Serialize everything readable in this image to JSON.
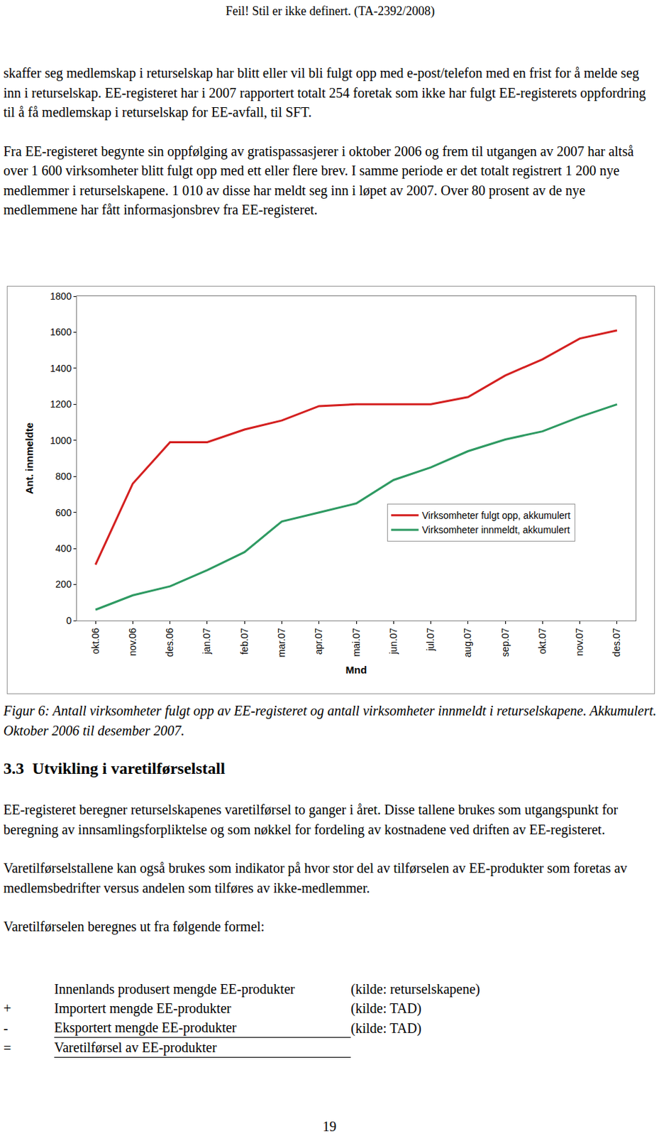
{
  "header": "Feil! Stil er ikke definert. (TA-2392/2008)",
  "paragraphs_before": [
    "skaffer seg medlemskap i returselskap har blitt eller vil bli fulgt opp med e-post/telefon med en frist for å melde seg inn i returselskap. EE-registeret har i 2007 rapportert totalt 254 foretak som ikke har fulgt EE-registerets oppfordring til å få medlemskap i returselskap for EE-avfall, til SFT.",
    "Fra EE-registeret begynte sin oppfølging av gratispassasjerer i oktober 2006 og frem til utgangen av 2007 har altså over 1 600 virksomheter blitt fulgt opp med ett eller flere brev. I samme periode er det totalt registrert 1 200 nye medlemmer i returselskapene. 1 010 av disse har meldt seg inn i løpet av 2007. Over 80 prosent av de nye medlemmene har fått informasjonsbrev fra EE-registeret."
  ],
  "chart_data": {
    "type": "line",
    "x_label": "Mnd",
    "y_label": "Ant. innmeldte",
    "categories": [
      "okt.06",
      "nov.06",
      "des.06",
      "jan.07",
      "feb.07",
      "mar.07",
      "apr.07",
      "mai.07",
      "jun.07",
      "jul.07",
      "aug.07",
      "sep.07",
      "okt.07",
      "nov.07",
      "des.07"
    ],
    "series": [
      {
        "name": "Virksomheter fulgt opp, akkumulert",
        "color": "#d42020",
        "values": [
          310,
          760,
          990,
          990,
          1060,
          1110,
          1190,
          1200,
          1200,
          1200,
          1240,
          1360,
          1450,
          1565,
          1610
        ]
      },
      {
        "name": "Virksomheter innmeldt, akkumulert",
        "color": "#2e9a62",
        "values": [
          60,
          140,
          190,
          280,
          380,
          550,
          600,
          650,
          780,
          850,
          940,
          1005,
          1050,
          1130,
          1200
        ]
      }
    ],
    "ylim": [
      0,
      1800
    ],
    "yticks": [
      0,
      200,
      400,
      600,
      800,
      1000,
      1200,
      1400,
      1600,
      1800
    ],
    "grid": false,
    "legend": "right"
  },
  "caption": "Figur 6: Antall virksomheter fulgt opp av EE-registeret og antall virksomheter innmeldt i returselskapene. Akkumulert. Oktober 2006 til desember 2007.",
  "section": {
    "number": "3.3",
    "title": "Utvikling i varetilførselstall"
  },
  "paragraphs_after": [
    "EE-registeret beregner returselskapenes varetilførsel to ganger i året. Disse tallene brukes som utgangspunkt for beregning av innsamlingsforpliktelse og som nøkkel for fordeling av kostnadene ved driften av EE-registeret.",
    "Varetilførselstallene kan også brukes som indikator på hvor stor del av tilførselen av EE-produkter som foretas av medlemsbedrifter versus andelen som tilføres av ikke-medlemmer.",
    "Varetilførselen beregnes ut fra følgende formel:"
  ],
  "formula": {
    "rows": [
      [
        null,
        "Innenlands produsert mengde EE-produkter",
        "(kilde: returselskapene)"
      ],
      [
        "+",
        "Importert mengde EE-produkter",
        "(kilde: TAD)"
      ],
      [
        "-",
        "Eksportert mengde EE-produkter",
        "(kilde: TAD)"
      ],
      [
        "=",
        "Varetilførsel av EE-produkter",
        null
      ]
    ]
  },
  "page_number": "19"
}
